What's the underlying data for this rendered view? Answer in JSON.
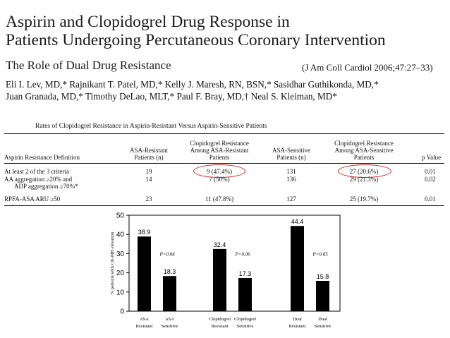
{
  "title_lines": [
    "Aspirin and Clopidogrel Drug Response in",
    "Patients Undergoing Percutaneous Coronary Intervention"
  ],
  "subtitle": "The Role of Dual Drug Resistance",
  "citation": "(J Am Coll Cardiol 2006;47:27–33)",
  "author_lines": [
    "Eli I. Lev, MD,* Rajnikant T. Patel, MD,* Kelly J. Maresh, RN, BSN,* Sasidhar Guthikonda, MD,*",
    "Juan Granada, MD,* Timothy DeLao, MLT,* Paul F. Bray, MD,† Neal S. Kleiman, MD*"
  ],
  "table": {
    "caption": "Rates of Clopidogrel Resistance in Aspirin-Resistant Versus Aspirin-Sensitive Patients",
    "headers": {
      "definition": "Aspirin Resistance Definition",
      "asa_resistant": [
        "ASA-Resistant",
        "Patients (n)"
      ],
      "clop_among_resistant": [
        "Clopidogrel Resistance",
        "Among ASA-Resistant",
        "Patients"
      ],
      "asa_sensitive": [
        "ASA-Sensitive",
        "Patients (n)"
      ],
      "clop_among_sensitive": [
        "Clopidogrel Resistance",
        "Among ASA-Sensitive",
        "Patients"
      ],
      "p_value": "p Value"
    },
    "rows": [
      {
        "definition": [
          "At least 2 of the 3 criteria"
        ],
        "asa_resistant": "19",
        "clop_resistant": "9 (47.4%)",
        "asa_sensitive": "131",
        "clop_sensitive": "27 (20.6%)",
        "p": "0.01"
      },
      {
        "definition": [
          "AA aggregation ≥20% and",
          "ADP aggregation ≥70%*"
        ],
        "asa_resistant": "14",
        "clop_resistant": "7 (50%)",
        "asa_sensitive": "136",
        "clop_sensitive": "29 (21.3%)",
        "p": "0.02"
      },
      {
        "definition": [
          "RPFA-ASA ARU ≥50"
        ],
        "asa_resistant": "23",
        "clop_resistant": "11 (47.8%)",
        "asa_sensitive": "127",
        "clop_sensitive": "25 (19.7%)",
        "p": "0.01"
      }
    ]
  },
  "chart_data": {
    "type": "bar",
    "ylabel": "% patients with CK-MB elevation",
    "ylim": [
      0,
      50
    ],
    "yticks": [
      "0",
      "10",
      "20",
      "30",
      "40",
      "50"
    ],
    "groups": [
      {
        "bars": [
          {
            "label": [
              "ASA",
              "Resistant"
            ],
            "value": 38.9,
            "value_label": "38.9"
          },
          {
            "label": [
              "ASA",
              "Sensitive"
            ],
            "value": 18.3,
            "value_label": "18.3"
          }
        ],
        "p_label": "P=0.04"
      },
      {
        "bars": [
          {
            "label": [
              "Clopidogrel",
              "Resistant"
            ],
            "value": 32.4,
            "value_label": "32.4"
          },
          {
            "label": [
              "Clopidogrel",
              "Sensitive"
            ],
            "value": 17.3,
            "value_label": "17.3"
          }
        ],
        "p_label": "P=0.06"
      },
      {
        "bars": [
          {
            "label": [
              "Dual",
              "Resistant"
            ],
            "value": 44.4,
            "value_label": "44.4"
          },
          {
            "label": [
              "Dual",
              "Sensitive"
            ],
            "value": 15.8,
            "value_label": "15.8"
          }
        ],
        "p_label": "P=0.05"
      }
    ],
    "bar_color": "#000000",
    "highlight_color": "#d0201a"
  }
}
